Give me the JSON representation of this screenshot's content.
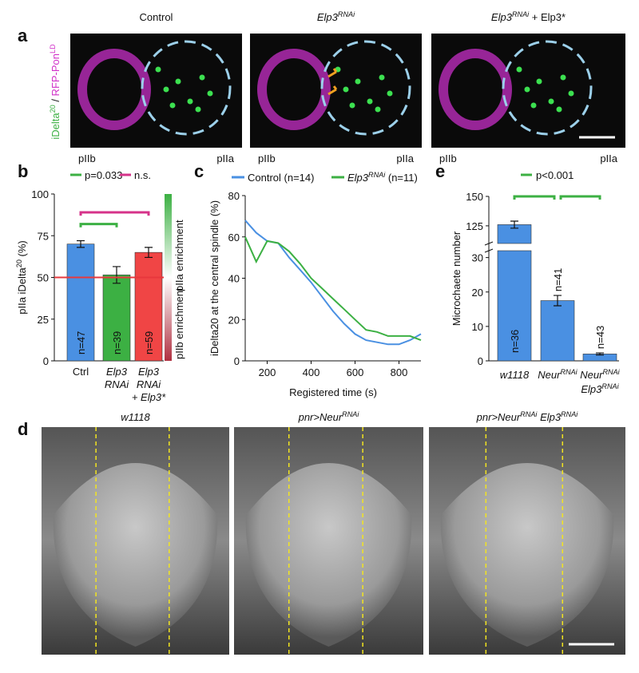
{
  "panel_labels": [
    "a",
    "b",
    "c",
    "d",
    "e"
  ],
  "panel_a": {
    "y_label": [
      {
        "text": "iDelta"
      },
      {
        "text": "20",
        "sup": true
      },
      {
        "text": " / "
      },
      {
        "text": "RFP-Pon"
      },
      {
        "text": "LD",
        "sup": true
      }
    ],
    "images": [
      {
        "title": [
          {
            "text": "Control"
          }
        ],
        "left": "pIIb",
        "right": "pIIa"
      },
      {
        "title": [
          {
            "text": "Elp3"
          },
          {
            "text": "RNAi",
            "sup": true
          }
        ],
        "left": "pIIb",
        "right": "pIIa"
      },
      {
        "title": [
          {
            "text": "Elp3"
          },
          {
            "text": "RNAi",
            "sup": true
          },
          {
            "text": " + Elp3*"
          }
        ],
        "left": "pIIb",
        "right": "pIIa"
      }
    ]
  },
  "panel_d": {
    "titles": [
      [
        {
          "text": "w1118"
        }
      ],
      [
        {
          "text": "pnr>Neur"
        },
        {
          "text": "RNAi",
          "sup": true
        }
      ],
      [
        {
          "text": "pnr>Neur"
        },
        {
          "text": "RNAi",
          "sup": true
        },
        {
          "text": " Elp3"
        },
        {
          "text": "RNAi",
          "sup": true
        }
      ]
    ]
  },
  "chart_data": [
    {
      "type": "bar",
      "y_label": [
        {
          "text": "pIIa iDelta"
        },
        {
          "text": "20",
          "sup": true
        },
        {
          "text": " (%)"
        }
      ],
      "categories": [
        [
          [
            {
              "text": "Ctrl"
            }
          ]
        ],
        [
          [
            {
              "text": "Elp3"
            }
          ],
          [
            {
              "text": "RNAi"
            }
          ]
        ],
        [
          [
            {
              "text": "Elp3"
            }
          ],
          [
            {
              "text": "RNAi"
            }
          ],
          [
            {
              "text": "+ Elp3*"
            }
          ]
        ]
      ],
      "category_colors": [
        "#4a90e2",
        "#3cb043",
        "#f04545"
      ],
      "values": [
        70,
        51.5,
        65
      ],
      "errors": [
        2,
        5,
        3
      ],
      "colors": [
        "#4a90e2",
        "#3cb043",
        "#f04545"
      ],
      "n_labels": [
        "n=47",
        "n=39",
        "n=59"
      ],
      "annotations": [
        {
          "text": "p=0.033",
          "color": "#3cb043"
        },
        {
          "text": "n.s.",
          "color": "#d6338a"
        }
      ],
      "reference_line": 50,
      "reference_color": "#e8383d",
      "side_labels": [
        "pIIb enrichment",
        "pIIa enrichment"
      ],
      "ylim": [
        0,
        100
      ],
      "yticks": [
        0,
        25,
        50,
        75,
        100
      ]
    },
    {
      "type": "line",
      "x_label": "Registered time (s)",
      "y_label": "iDelta20 at the central spindle (%)",
      "x": [
        100,
        150,
        200,
        250,
        300,
        350,
        400,
        450,
        500,
        550,
        600,
        650,
        700,
        750,
        800,
        850,
        900
      ],
      "series": [
        {
          "name": [
            {
              "text": "Control (n=14)"
            }
          ],
          "color": "#4a90e2",
          "values": [
            68,
            62,
            58,
            57,
            50,
            44,
            38,
            31,
            24,
            18,
            13,
            10,
            9,
            8,
            8,
            10,
            13
          ]
        },
        {
          "name": [
            {
              "text": "Elp3"
            },
            {
              "text": "RNAi",
              "sup": true
            },
            {
              "text": " (n=11)"
            }
          ],
          "color": "#3cb043",
          "values": [
            60,
            48,
            58,
            57,
            53,
            47,
            40,
            35,
            30,
            25,
            20,
            15,
            14,
            12,
            12,
            12,
            10
          ]
        }
      ],
      "xlim": [
        100,
        900
      ],
      "xticks": [
        200,
        400,
        600,
        800
      ],
      "ylim": [
        0,
        80
      ],
      "yticks": [
        0,
        20,
        40,
        60,
        80
      ]
    },
    {
      "type": "bar",
      "y_label": [
        {
          "text": "Microchaete number"
        }
      ],
      "categories": [
        [
          [
            {
              "text": "w1118"
            }
          ]
        ],
        [
          [
            {
              "text": "Neur"
            },
            {
              "text": "RNAi",
              "sup": true
            }
          ]
        ],
        [
          [
            {
              "text": "Neur"
            },
            {
              "text": "RNAi",
              "sup": true
            }
          ],
          [
            {
              "text": "Elp3"
            },
            {
              "text": "RNAi",
              "sup": true
            }
          ]
        ]
      ],
      "values": [
        126,
        17.5,
        2
      ],
      "errors": [
        3,
        1.5,
        0.3
      ],
      "colors": [
        "#4a90e2",
        "#4a90e2",
        "#4a90e2"
      ],
      "n_labels": [
        "n=36",
        "n=41",
        "n=43"
      ],
      "annotations": [
        {
          "text": "p<0.001",
          "color": "#3cb043"
        }
      ],
      "ylim": [
        0,
        150
      ],
      "axis_break": [
        32,
        110
      ],
      "yticks": [
        0,
        10,
        20,
        30,
        125,
        150
      ]
    }
  ]
}
